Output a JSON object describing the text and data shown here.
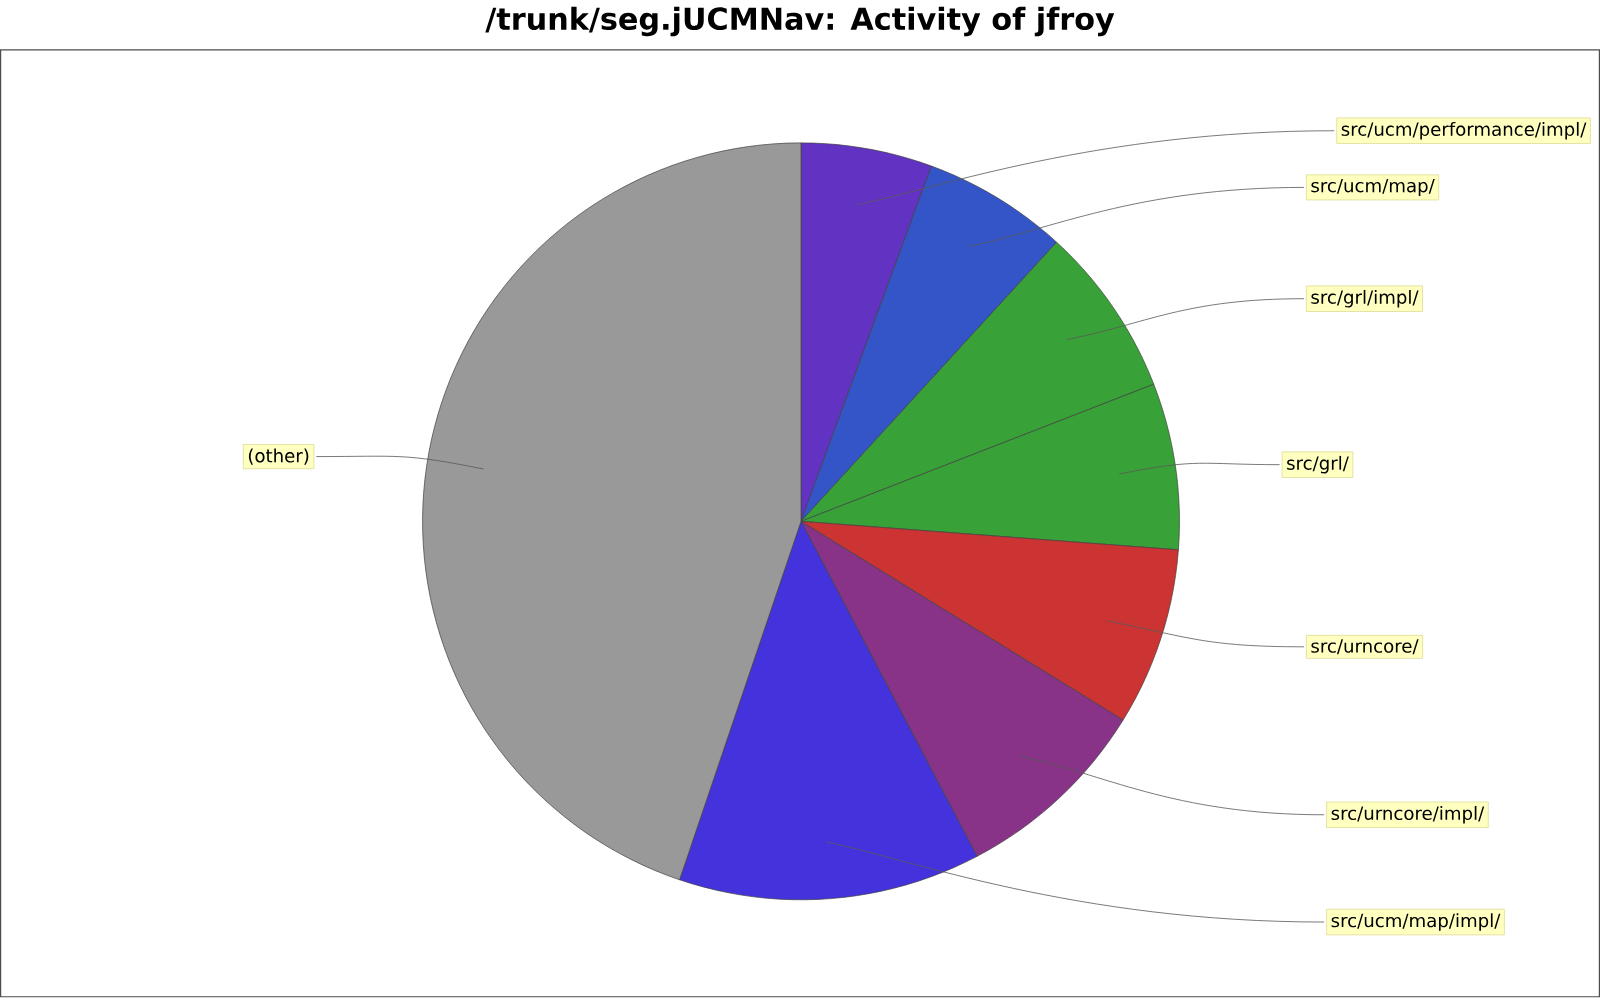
{
  "chart_data": {
    "type": "pie",
    "title": "/trunk/seg.jUCMNav: Activity of jfroy",
    "categories": [
      "src/ucm/performance/impl/",
      "src/ucm/map/",
      "src/grl/impl/",
      "src/grl/",
      "src/urncore/",
      "src/urncore/impl/",
      "src/ucm/map/impl/",
      "(other)"
    ],
    "values": [
      5.6,
      6.2,
      7.3,
      7.1,
      7.6,
      8.5,
      12.9,
      44.8
    ],
    "colors": [
      "#6233c2",
      "#3355c8",
      "#38a238",
      "#38a238",
      "#cc3333",
      "#883388",
      "#4433dd",
      "#999999"
    ]
  }
}
